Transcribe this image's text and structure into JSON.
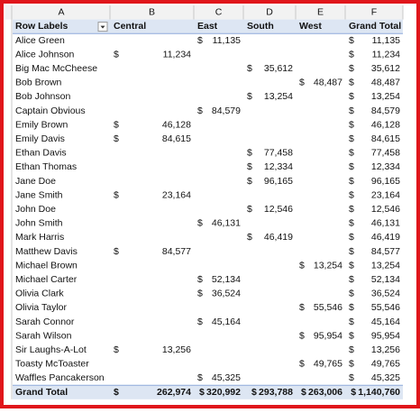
{
  "columns": [
    "A",
    "B",
    "C",
    "D",
    "E",
    "F"
  ],
  "table": {
    "header": [
      "Row Labels",
      "Central",
      "East",
      "South",
      "West",
      "Grand Total"
    ],
    "rows": [
      {
        "label": "Alice Green",
        "values": [
          null,
          [
            "$",
            "11,135"
          ],
          null,
          null,
          [
            "$",
            "11,135"
          ]
        ]
      },
      {
        "label": "Alice Johnson",
        "values": [
          [
            "$",
            "11,234"
          ],
          null,
          null,
          null,
          [
            "$",
            "11,234"
          ]
        ]
      },
      {
        "label": "Big Mac McCheese",
        "values": [
          null,
          null,
          [
            "$",
            "35,612"
          ],
          null,
          [
            "$",
            "35,612"
          ]
        ]
      },
      {
        "label": "Bob Brown",
        "values": [
          null,
          null,
          null,
          [
            "$",
            "48,487"
          ],
          [
            "$",
            "48,487"
          ]
        ]
      },
      {
        "label": "Bob Johnson",
        "values": [
          null,
          null,
          [
            "$",
            "13,254"
          ],
          null,
          [
            "$",
            "13,254"
          ]
        ]
      },
      {
        "label": "Captain Obvious",
        "values": [
          null,
          [
            "$",
            "84,579"
          ],
          null,
          null,
          [
            "$",
            "84,579"
          ]
        ]
      },
      {
        "label": "Emily Brown",
        "values": [
          [
            "$",
            "46,128"
          ],
          null,
          null,
          null,
          [
            "$",
            "46,128"
          ]
        ]
      },
      {
        "label": "Emily Davis",
        "values": [
          [
            "$",
            "84,615"
          ],
          null,
          null,
          null,
          [
            "$",
            "84,615"
          ]
        ]
      },
      {
        "label": "Ethan Davis",
        "values": [
          null,
          null,
          [
            "$",
            "77,458"
          ],
          null,
          [
            "$",
            "77,458"
          ]
        ]
      },
      {
        "label": "Ethan Thomas",
        "values": [
          null,
          null,
          [
            "$",
            "12,334"
          ],
          null,
          [
            "$",
            "12,334"
          ]
        ]
      },
      {
        "label": "Jane Doe",
        "values": [
          null,
          null,
          [
            "$",
            "96,165"
          ],
          null,
          [
            "$",
            "96,165"
          ]
        ]
      },
      {
        "label": "Jane Smith",
        "values": [
          [
            "$",
            "23,164"
          ],
          null,
          null,
          null,
          [
            "$",
            "23,164"
          ]
        ]
      },
      {
        "label": "John Doe",
        "values": [
          null,
          null,
          [
            "$",
            "12,546"
          ],
          null,
          [
            "$",
            "12,546"
          ]
        ]
      },
      {
        "label": "John Smith",
        "values": [
          null,
          [
            "$",
            "46,131"
          ],
          null,
          null,
          [
            "$",
            "46,131"
          ]
        ]
      },
      {
        "label": "Mark Harris",
        "values": [
          null,
          null,
          [
            "$",
            "46,419"
          ],
          null,
          [
            "$",
            "46,419"
          ]
        ]
      },
      {
        "label": "Matthew Davis",
        "values": [
          [
            "$",
            "84,577"
          ],
          null,
          null,
          null,
          [
            "$",
            "84,577"
          ]
        ]
      },
      {
        "label": "Michael Brown",
        "values": [
          null,
          null,
          null,
          [
            "$",
            "13,254"
          ],
          [
            "$",
            "13,254"
          ]
        ]
      },
      {
        "label": "Michael Carter",
        "values": [
          null,
          [
            "$",
            "52,134"
          ],
          null,
          null,
          [
            "$",
            "52,134"
          ]
        ]
      },
      {
        "label": "Olivia Clark",
        "values": [
          null,
          [
            "$",
            "36,524"
          ],
          null,
          null,
          [
            "$",
            "36,524"
          ]
        ]
      },
      {
        "label": "Olivia Taylor",
        "values": [
          null,
          null,
          null,
          [
            "$",
            "55,546"
          ],
          [
            "$",
            "55,546"
          ]
        ]
      },
      {
        "label": "Sarah Connor",
        "values": [
          null,
          [
            "$",
            "45,164"
          ],
          null,
          null,
          [
            "$",
            "45,164"
          ]
        ]
      },
      {
        "label": "Sarah Wilson",
        "values": [
          null,
          null,
          null,
          [
            "$",
            "95,954"
          ],
          [
            "$",
            "95,954"
          ]
        ]
      },
      {
        "label": "Sir Laughs-A-Lot",
        "values": [
          [
            "$",
            "13,256"
          ],
          null,
          null,
          null,
          [
            "$",
            "13,256"
          ]
        ]
      },
      {
        "label": "Toasty McToaster",
        "values": [
          null,
          null,
          null,
          [
            "$",
            "49,765"
          ],
          [
            "$",
            "49,765"
          ]
        ]
      },
      {
        "label": "Waffles Pancakerson",
        "values": [
          null,
          [
            "$",
            "45,325"
          ],
          null,
          null,
          [
            "$",
            "45,325"
          ]
        ]
      }
    ],
    "total": {
      "label": "Grand Total",
      "values": [
        [
          "$",
          "262,974"
        ],
        [
          "$",
          "320,992"
        ],
        [
          "$",
          "293,788"
        ],
        [
          "$",
          "263,006"
        ],
        [
          "$",
          "1,140,760"
        ]
      ]
    }
  }
}
